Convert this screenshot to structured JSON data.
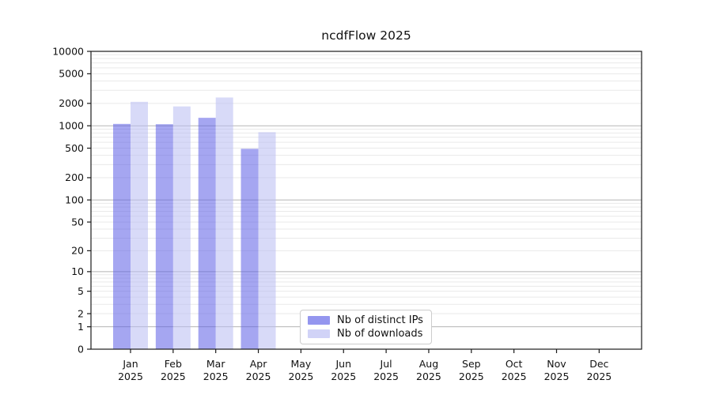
{
  "chart_data": {
    "type": "bar",
    "title": "ncdfFlow 2025",
    "categories": [
      "Jan",
      "Feb",
      "Mar",
      "Apr",
      "May",
      "Jun",
      "Jul",
      "Aug",
      "Sep",
      "Oct",
      "Nov",
      "Dec"
    ],
    "year_label": "2025",
    "series": [
      {
        "name": "Nb of distinct IPs",
        "color": "#5b5de6",
        "values": [
          1060,
          1050,
          1280,
          490,
          null,
          null,
          null,
          null,
          null,
          null,
          null,
          null
        ]
      },
      {
        "name": "Nb of downloads",
        "color": "#b8bbf2",
        "values": [
          2100,
          1820,
          2400,
          820,
          null,
          null,
          null,
          null,
          null,
          null,
          null,
          null
        ]
      }
    ],
    "bar_opacity": 0.55,
    "yscale": "log1p",
    "yticks": [
      0,
      1,
      2,
      5,
      10,
      20,
      50,
      100,
      200,
      500,
      1000,
      2000,
      5000,
      10000
    ],
    "ylim": [
      0,
      10000
    ],
    "grid": {
      "show": true,
      "major_color": "#b5b5b5",
      "minor_color": "#e9e9e9"
    },
    "axis_color": "#1a1a1a",
    "legend_position": "lower center"
  }
}
